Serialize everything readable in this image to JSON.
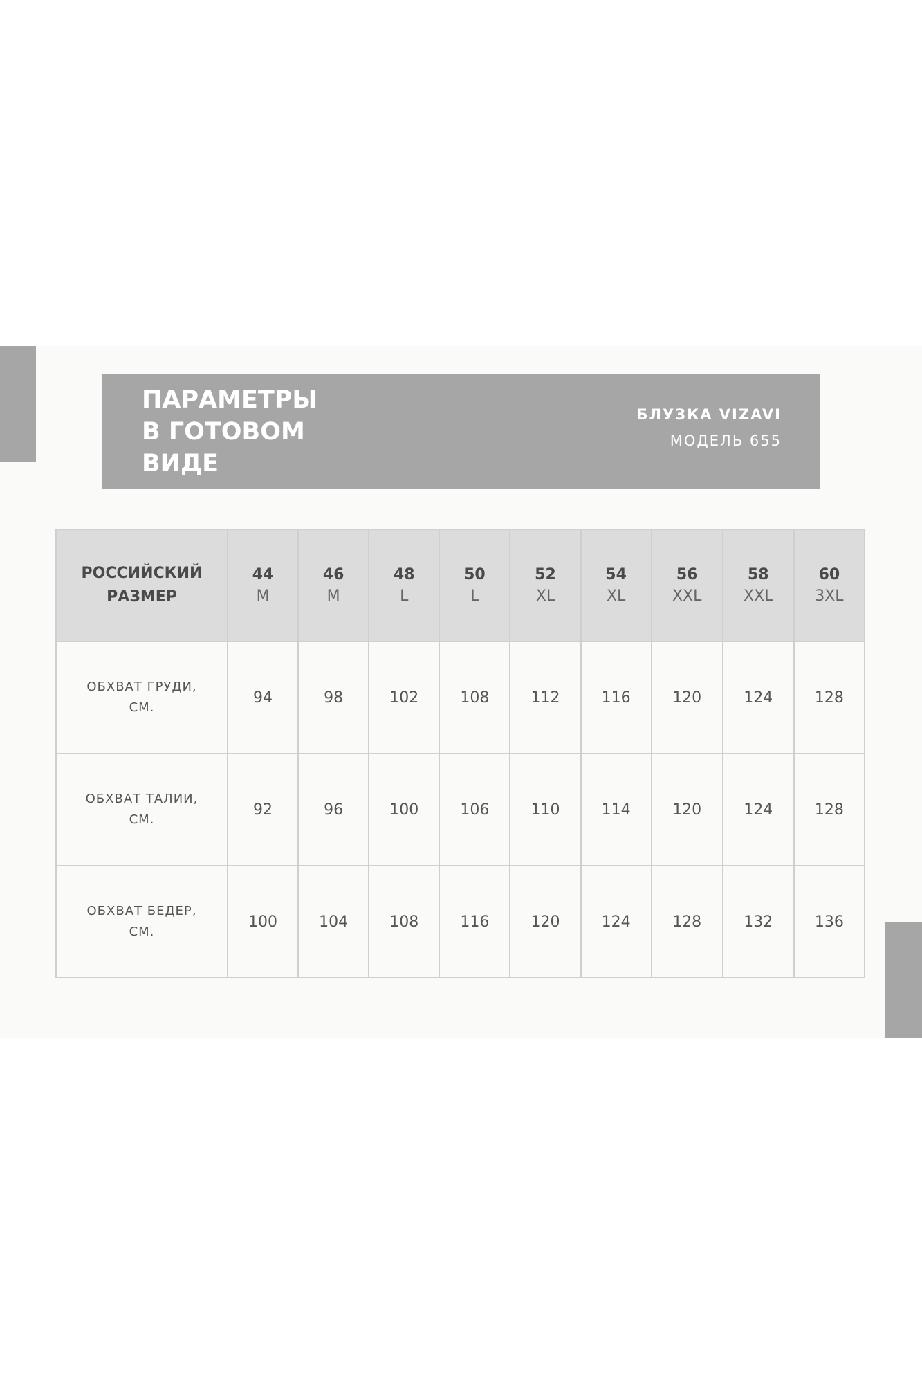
{
  "header": {
    "title_lines": [
      "ПАРАМЕТРЫ",
      "В ГОТОВОМ",
      "ВИДЕ"
    ],
    "brand": "БЛУЗКА VIZAVI",
    "model": "МОДЕЛЬ 655"
  },
  "table": {
    "corner_label": [
      "РОССИЙСКИЙ",
      "РАЗМЕР"
    ],
    "sizes": [
      {
        "ru": "44",
        "intl": "M"
      },
      {
        "ru": "46",
        "intl": "M"
      },
      {
        "ru": "48",
        "intl": "L"
      },
      {
        "ru": "50",
        "intl": "L"
      },
      {
        "ru": "52",
        "intl": "XL"
      },
      {
        "ru": "54",
        "intl": "XL"
      },
      {
        "ru": "56",
        "intl": "XXL"
      },
      {
        "ru": "58",
        "intl": "XXL"
      },
      {
        "ru": "60",
        "intl": "3XL"
      }
    ],
    "rows": [
      {
        "label": [
          "ОБХВАТ ГРУДИ,",
          "СМ."
        ],
        "values": [
          "94",
          "98",
          "102",
          "108",
          "112",
          "116",
          "120",
          "124",
          "128"
        ]
      },
      {
        "label": [
          "ОБХВАТ ТАЛИИ,",
          "СМ."
        ],
        "values": [
          "92",
          "96",
          "100",
          "106",
          "110",
          "114",
          "120",
          "124",
          "128"
        ]
      },
      {
        "label": [
          "ОБХВАТ БЕДЕР,",
          "СМ."
        ],
        "values": [
          "100",
          "104",
          "108",
          "116",
          "120",
          "124",
          "128",
          "132",
          "136"
        ]
      }
    ]
  },
  "colors": {
    "accent_gray": "#a6a6a6",
    "header_row": "#dcdcdc",
    "text": "#4a4a4a"
  }
}
